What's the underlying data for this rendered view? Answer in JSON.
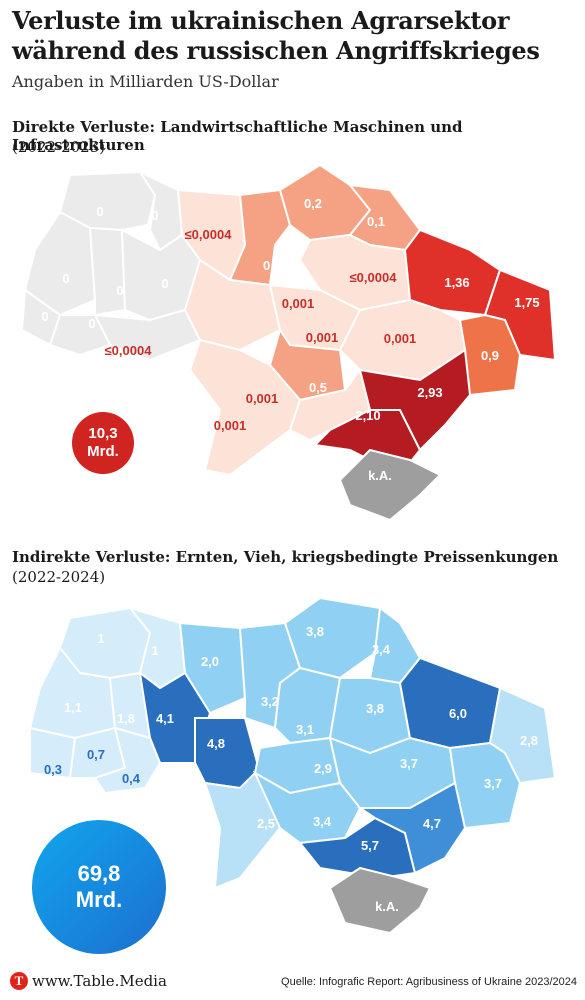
{
  "title": "Verluste im ukrainischen Agrarsektor während des russischen Angriffskrieges",
  "subtitle": "Angaben in Milliarden US-Dollar",
  "colors": {
    "accent_red": "#e2231a",
    "crimea_gray": "#9e9e9e",
    "blue_total": "#1493e6"
  },
  "direct": {
    "heading": "Direkte Verluste: Landwirtschaftliche Maschinen und Infrastrukturen",
    "period": "(2022-2023)",
    "total_value": "10,3",
    "total_unit": "Mrd.",
    "regions": [
      {
        "id": "volyn",
        "label": "0"
      },
      {
        "id": "rivne",
        "label": "0"
      },
      {
        "id": "lviv",
        "label": "0"
      },
      {
        "id": "ternopil",
        "label": "0"
      },
      {
        "id": "khmelnytskyi",
        "label": "0"
      },
      {
        "id": "zakarpattia",
        "label": "0"
      },
      {
        "id": "ivano-frankivsk",
        "label": "0"
      },
      {
        "id": "chernivtsi",
        "label": "≤0,0004"
      },
      {
        "id": "zhytomyr",
        "label": "≤0,0004"
      },
      {
        "id": "kyiv",
        "label": "0,5"
      },
      {
        "id": "chernihiv",
        "label": "0,2"
      },
      {
        "id": "sumy",
        "label": "0,1"
      },
      {
        "id": "poltava",
        "label": "≤0,0004"
      },
      {
        "id": "kharkiv",
        "label": "1,36"
      },
      {
        "id": "luhansk",
        "label": "1,75"
      },
      {
        "id": "donetsk",
        "label": "0,9"
      },
      {
        "id": "vinnytsia",
        "label": "0,001"
      },
      {
        "id": "cherkasy",
        "label": "0,001"
      },
      {
        "id": "dnipropetrovsk",
        "label": "0,001"
      },
      {
        "id": "kirovohrad",
        "label": "0,5"
      },
      {
        "id": "odesa",
        "label": "0,001"
      },
      {
        "id": "mykolaiv",
        "label": "0,001"
      },
      {
        "id": "kherson",
        "label": "2,10"
      },
      {
        "id": "zaporizhzhia",
        "label": "2,93"
      },
      {
        "id": "crimea",
        "label": "k.A."
      }
    ]
  },
  "indirect": {
    "heading": "Indirekte Verluste: Ernten, Vieh, kriegsbedingte Preissenkungen",
    "period": "(2022-2024)",
    "total_value": "69,8",
    "total_unit": "Mrd.",
    "regions": [
      {
        "id": "volyn",
        "label": "1"
      },
      {
        "id": "rivne",
        "label": "1"
      },
      {
        "id": "zhytomyr",
        "label": "2,0"
      },
      {
        "id": "lviv",
        "label": "1,1"
      },
      {
        "id": "ternopil",
        "label": "1,8"
      },
      {
        "id": "khmelnytskyi",
        "label": "4,1"
      },
      {
        "id": "vinnytsia",
        "label": "4,8"
      },
      {
        "id": "zakarpattia",
        "label": "0,3"
      },
      {
        "id": "ivano-frankivsk",
        "label": "0,7"
      },
      {
        "id": "chernivtsi",
        "label": "0,4"
      },
      {
        "id": "kyiv",
        "label": "3,2"
      },
      {
        "id": "chernihiv",
        "label": "3,8"
      },
      {
        "id": "sumy",
        "label": "3,4"
      },
      {
        "id": "cherkasy",
        "label": "3,1"
      },
      {
        "id": "poltava",
        "label": "3,8"
      },
      {
        "id": "kharkiv",
        "label": "6,0"
      },
      {
        "id": "luhansk",
        "label": "2,8"
      },
      {
        "id": "kirovohrad",
        "label": "2,9"
      },
      {
        "id": "dnipropetrovsk",
        "label": "3,7"
      },
      {
        "id": "donetsk",
        "label": "3,7"
      },
      {
        "id": "odesa",
        "label": "2,5"
      },
      {
        "id": "mykolaiv",
        "label": "3,4"
      },
      {
        "id": "kherson",
        "label": "5,7"
      },
      {
        "id": "zaporizhzhia",
        "label": "4,7"
      },
      {
        "id": "crimea",
        "label": "k.A."
      }
    ]
  },
  "footer": {
    "logo_letter": "T",
    "site": "www.Table.Media",
    "source": "Quelle: Infografic Report: Agribusiness of Ukraine 2023/2024"
  }
}
